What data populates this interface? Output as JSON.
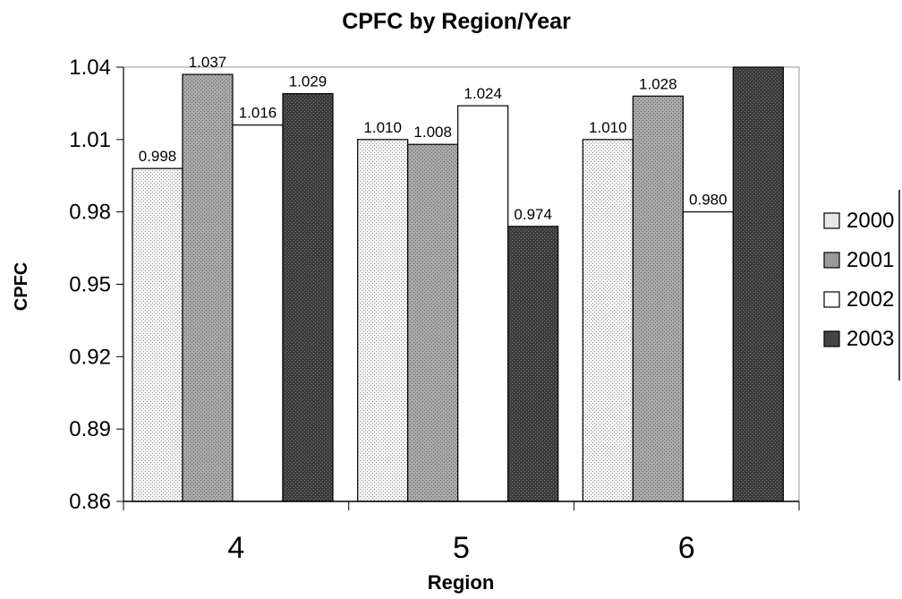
{
  "chart_data": {
    "type": "bar",
    "title": "CPFC by Region/Year",
    "xlabel": "Region",
    "ylabel": "CPFC",
    "categories": [
      "4",
      "5",
      "6"
    ],
    "series": [
      {
        "name": "2000",
        "values": [
          0.998,
          1.01,
          1.01
        ],
        "labels": [
          "0.998",
          "1.010",
          "1.010"
        ],
        "pattern": "pat-dots",
        "swatch_fill": "#e6e6e6"
      },
      {
        "name": "2001",
        "values": [
          1.037,
          1.008,
          1.028
        ],
        "labels": [
          "1.037",
          "1.008",
          "1.028"
        ],
        "pattern": "pat-medium",
        "swatch_fill": "#9a9a9a"
      },
      {
        "name": "2002",
        "values": [
          1.016,
          1.024,
          0.98
        ],
        "labels": [
          "1.016",
          "1.024",
          "0.980"
        ],
        "pattern": "pat-none",
        "swatch_fill": "#ffffff"
      },
      {
        "name": "2003",
        "values": [
          1.029,
          0.974,
          1.04
        ],
        "labels": [
          "1.029",
          "0.974",
          ""
        ],
        "pattern": "pat-dark",
        "swatch_fill": "#444444"
      }
    ],
    "ylim": [
      0.86,
      1.04
    ],
    "yticks": [
      "0.86",
      "0.89",
      "0.92",
      "0.95",
      "0.98",
      "1.01",
      "1.04"
    ],
    "grid": false,
    "legend_position": "right"
  }
}
